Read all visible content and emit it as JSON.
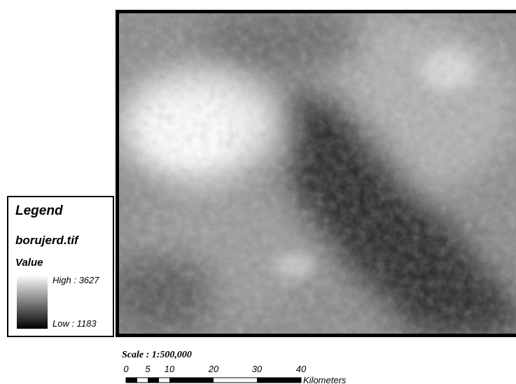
{
  "legend": {
    "title": "Legend",
    "layer": "borujerd.tif",
    "field": "Value",
    "high": "High : 3627",
    "low": "Low : 1183"
  },
  "scale": {
    "text": "Scale : 1:500,000",
    "ticks": [
      "0",
      "5",
      "10",
      "20",
      "30",
      "40"
    ],
    "unit": "Kilometers"
  }
}
